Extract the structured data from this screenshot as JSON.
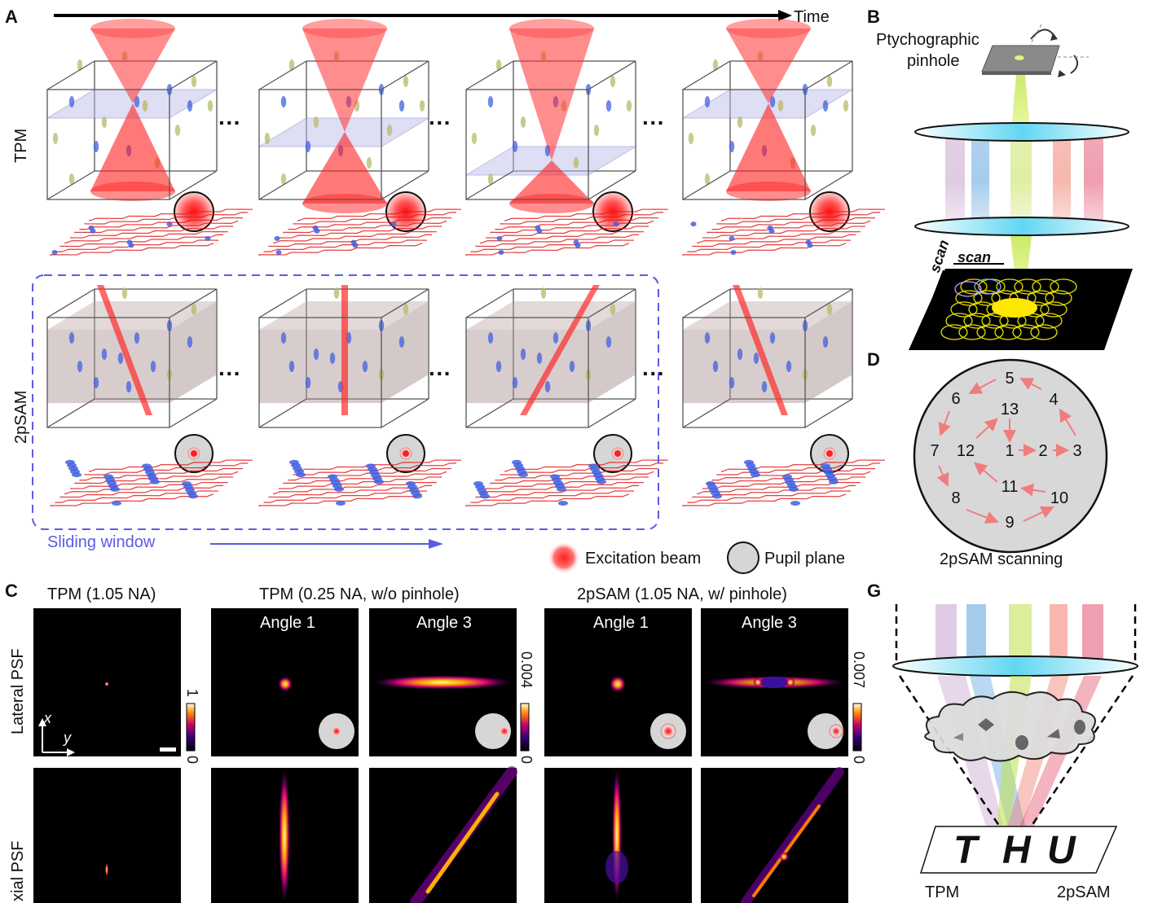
{
  "panels": {
    "A": "A",
    "B": "B",
    "C": "C",
    "D": "D",
    "G": "G"
  },
  "panel_a": {
    "time_label": "Time",
    "row_tpm": "TPM",
    "row_2psam": "2pSAM",
    "dots": "···",
    "sliding_window": "Sliding window",
    "legend_excitation": "Excitation beam",
    "legend_pupil": "Pupil plane"
  },
  "panel_b": {
    "pinhole_label_1": "Ptychographic",
    "pinhole_label_2": "pinhole",
    "scan_top": "scan",
    "scan_side": "scan"
  },
  "panel_d": {
    "numbers": [
      "1",
      "2",
      "3",
      "4",
      "5",
      "6",
      "7",
      "8",
      "9",
      "10",
      "11",
      "12",
      "13"
    ],
    "caption": "2pSAM scanning"
  },
  "panel_c": {
    "col1_title": "TPM (1.05 NA)",
    "col2_title": "TPM (0.25 NA, w/o pinhole)",
    "col3_title": "2pSAM (1.05 NA, w/ pinhole)",
    "angle1": "Angle 1",
    "angle3": "Angle 3",
    "row_lateral": "Lateral PSF",
    "row_axial": "xial PSF",
    "axis_x": "x",
    "axis_y": "y",
    "cb1_max": "1",
    "cb1_min": "0",
    "cb2_max": "0.004",
    "cb2_min": "0",
    "cb3_max": "0.007",
    "cb3_min": "0"
  },
  "panel_g": {
    "letters": [
      "T",
      "H",
      "U"
    ],
    "left_label": "TPM",
    "right_label": "2pSAM"
  }
}
